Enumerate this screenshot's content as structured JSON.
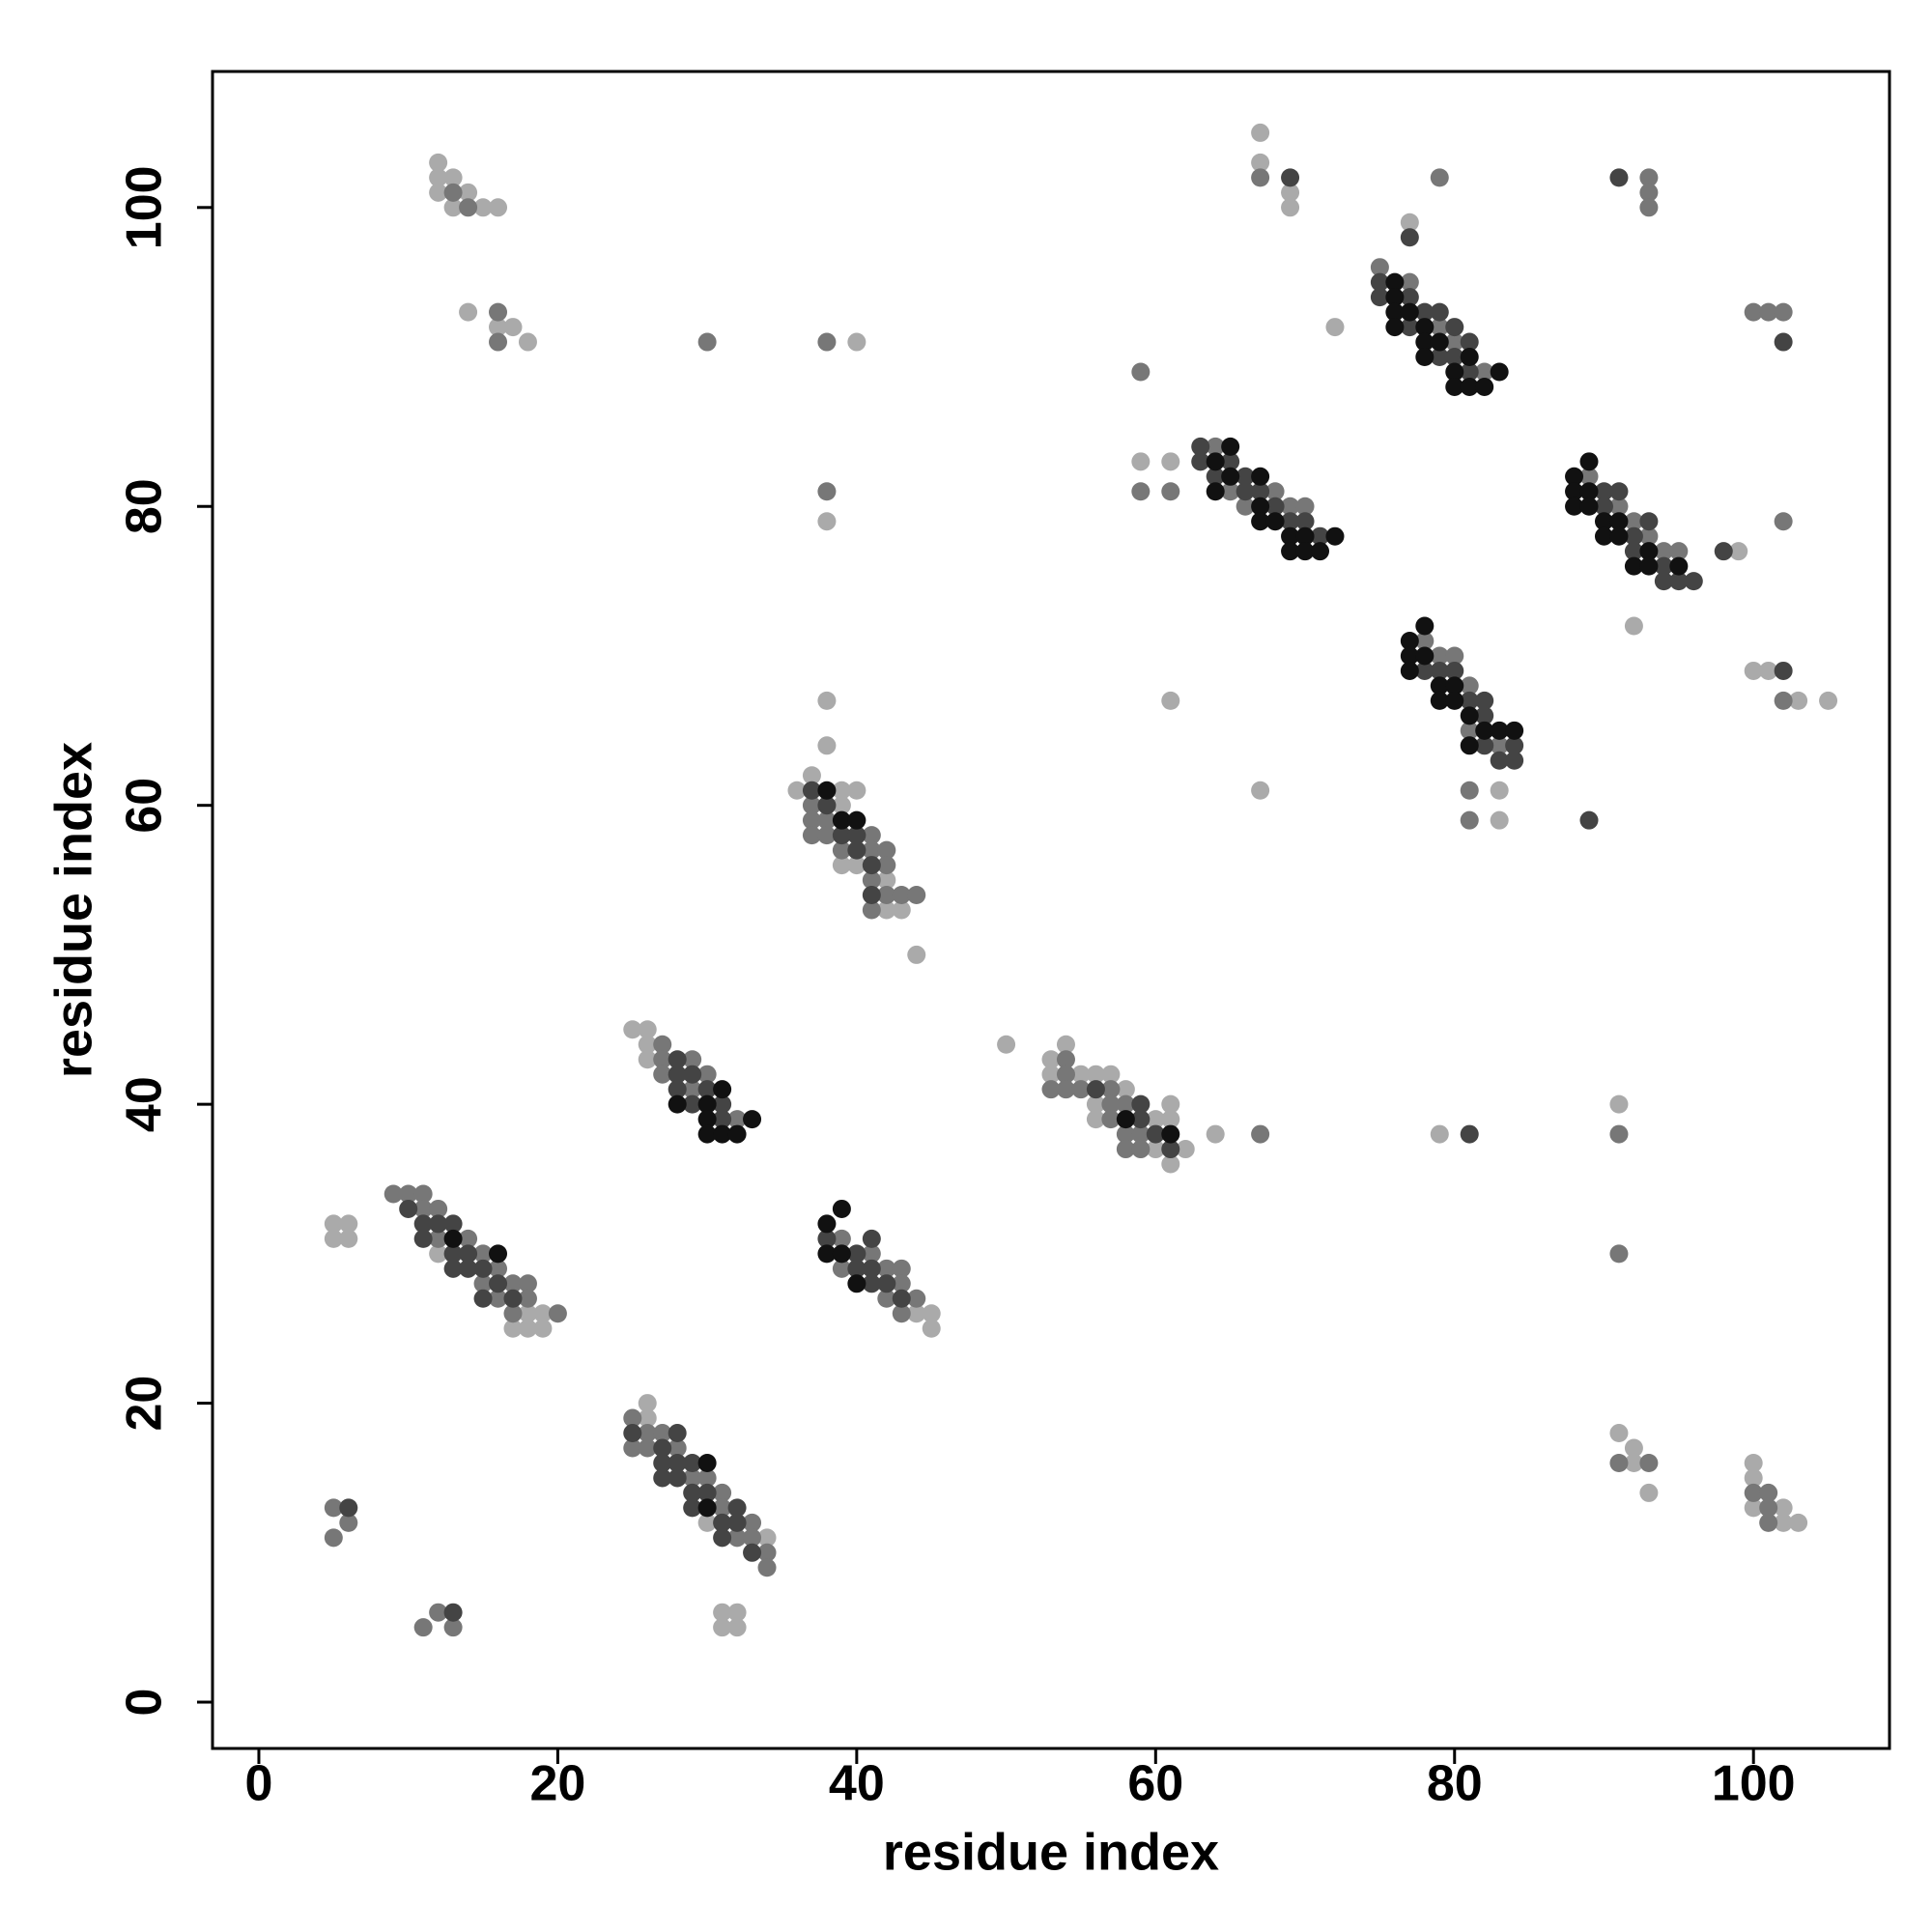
{
  "chart_data": {
    "type": "scatter",
    "xlabel": "residue index",
    "ylabel": "residue index",
    "xlim": [
      -3.1,
      109.1
    ],
    "ylim": [
      -3.1,
      109.1
    ],
    "xticks": [
      0,
      20,
      40,
      60,
      80,
      100
    ],
    "yticks": [
      0,
      20,
      40,
      60,
      80,
      100
    ],
    "series": [
      {
        "color": "#aaaaaa",
        "x": [
          12,
          12,
          12,
          13,
          13,
          14,
          15,
          16,
          14,
          16,
          17,
          18,
          40,
          38,
          38,
          38,
          36,
          37,
          39,
          40,
          39,
          39,
          40,
          42,
          42,
          43,
          44,
          59,
          61,
          77,
          72,
          83,
          83,
          67,
          61,
          99,
          92,
          100,
          101,
          103,
          105,
          67,
          67,
          69,
          69,
          25,
          26,
          26,
          26,
          50,
          54,
          53,
          53,
          55,
          56,
          57,
          58,
          56,
          61,
          56,
          60,
          61,
          60,
          62,
          61,
          64,
          79,
          91,
          44,
          45,
          45,
          12,
          18,
          19,
          17,
          18,
          19,
          5,
          6,
          5,
          6,
          26,
          26,
          30,
          34,
          31,
          32,
          31,
          32,
          91,
          92,
          92,
          93,
          100,
          100,
          100,
          102,
          102,
          103
        ],
        "values": [
          103,
          102,
          101,
          102,
          100,
          101,
          100,
          100,
          93,
          92,
          92,
          91,
          91,
          79,
          67,
          64,
          61,
          62,
          61,
          61,
          60,
          56,
          56,
          55,
          53,
          53,
          50,
          83,
          83,
          99,
          92,
          61,
          59,
          61,
          67,
          77,
          72,
          69,
          69,
          67,
          67,
          105,
          103,
          101,
          100,
          45,
          45,
          44,
          43,
          44,
          44,
          43,
          42,
          42,
          42,
          42,
          41,
          40,
          40,
          39,
          39,
          39,
          37,
          37,
          36,
          38,
          38,
          40,
          26,
          26,
          25,
          30,
          26,
          26,
          25,
          25,
          25,
          32,
          32,
          31,
          31,
          20,
          19,
          12,
          11,
          6,
          6,
          5,
          5,
          18,
          17,
          16,
          14,
          16,
          15,
          13,
          13,
          12,
          12
        ]
      },
      {
        "color": "#777777",
        "x": [
          13,
          14,
          16,
          16,
          30,
          38,
          38,
          37,
          37,
          38,
          37,
          38,
          41,
          39,
          41,
          42,
          42,
          41,
          42,
          43,
          44,
          41,
          59,
          61,
          59,
          64,
          65,
          68,
          66,
          69,
          70,
          75,
          77,
          79,
          80,
          82,
          79,
          78,
          79,
          80,
          81,
          81,
          83,
          81,
          81,
          89,
          91,
          92,
          93,
          94,
          95,
          102,
          102,
          100,
          101,
          102,
          93,
          93,
          93,
          67,
          27,
          27,
          29,
          27,
          30,
          29,
          32,
          54,
          54,
          53,
          54,
          55,
          57,
          57,
          58,
          57,
          58,
          59,
          58,
          59,
          67,
          91,
          91,
          39,
          41,
          39,
          42,
          43,
          43,
          42,
          44,
          43,
          9,
          10,
          11,
          11,
          12,
          12,
          14,
          15,
          16,
          15,
          17,
          18,
          16,
          18,
          17,
          20,
          25,
          26,
          27,
          25,
          26,
          28,
          29,
          30,
          31,
          31,
          33,
          32,
          33,
          34,
          34,
          5,
          6,
          5,
          11,
          12,
          13,
          91,
          93,
          100,
          101,
          101,
          101
        ],
        "values": [
          101,
          100,
          93,
          91,
          91,
          91,
          81,
          60,
          59,
          59,
          58,
          58,
          58,
          57,
          57,
          57,
          56,
          55,
          54,
          54,
          54,
          53,
          81,
          81,
          89,
          84,
          81,
          81,
          80,
          80,
          80,
          96,
          95,
          92,
          91,
          89,
          102,
          71,
          70,
          70,
          68,
          65,
          64,
          61,
          59,
          82,
          80,
          79,
          78,
          77,
          77,
          79,
          67,
          93,
          93,
          93,
          102,
          101,
          100,
          102,
          44,
          43,
          43,
          42,
          42,
          41,
          39,
          43,
          42,
          41,
          41,
          41,
          41,
          40,
          40,
          39,
          38,
          38,
          37,
          37,
          38,
          38,
          30,
          31,
          30,
          29,
          29,
          29,
          28,
          27,
          27,
          26,
          34,
          34,
          34,
          33,
          33,
          31,
          31,
          30,
          29,
          28,
          28,
          28,
          27,
          27,
          26,
          26,
          19,
          18,
          18,
          17,
          17,
          17,
          15,
          15,
          14,
          13,
          12,
          11,
          11,
          10,
          9,
          13,
          12,
          11,
          5,
          6,
          5,
          16,
          16,
          14,
          14,
          13,
          12
        ]
      },
      {
        "color": "#444444",
        "x": [
          37,
          38,
          39,
          40,
          40,
          41,
          41,
          63,
          63,
          65,
          64,
          66,
          66,
          67,
          68,
          69,
          70,
          71,
          75,
          75,
          77,
          78,
          79,
          77,
          80,
          81,
          79,
          80,
          81,
          77,
          69,
          91,
          78,
          79,
          80,
          81,
          82,
          82,
          82,
          84,
          83,
          84,
          89,
          90,
          91,
          90,
          93,
          92,
          92,
          94,
          94,
          95,
          96,
          98,
          102,
          102,
          28,
          28,
          29,
          28,
          30,
          29,
          31,
          31,
          56,
          59,
          59,
          60,
          61,
          81,
          38,
          41,
          40,
          40,
          41,
          41,
          42,
          43,
          10,
          11,
          12,
          13,
          11,
          13,
          14,
          13,
          14,
          15,
          16,
          15,
          17,
          25,
          28,
          27,
          27,
          28,
          29,
          27,
          28,
          29,
          30,
          29,
          32,
          31,
          32,
          31,
          33,
          6,
          13
        ],
        "values": [
          61,
          60,
          58,
          58,
          57,
          56,
          54,
          84,
          83,
          83,
          82,
          82,
          81,
          81,
          80,
          79,
          79,
          78,
          95,
          94,
          94,
          93,
          93,
          92,
          92,
          91,
          90,
          90,
          89,
          98,
          102,
          102,
          69,
          69,
          69,
          67,
          67,
          66,
          64,
          64,
          63,
          63,
          59,
          81,
          81,
          80,
          79,
          78,
          77,
          76,
          75,
          75,
          75,
          77,
          69,
          91,
          43,
          42,
          42,
          41,
          41,
          40,
          40,
          39,
          41,
          40,
          39,
          38,
          37,
          38,
          31,
          31,
          30,
          29,
          29,
          28,
          28,
          27,
          33,
          32,
          32,
          32,
          31,
          30,
          30,
          29,
          29,
          29,
          28,
          27,
          27,
          18,
          18,
          17,
          16,
          16,
          16,
          15,
          15,
          14,
          14,
          13,
          13,
          12,
          12,
          11,
          10,
          13,
          6
        ]
      },
      {
        "color": "#111111",
        "x": [
          38,
          39,
          40,
          65,
          64,
          65,
          67,
          64,
          67,
          67,
          68,
          69,
          70,
          72,
          69,
          70,
          71,
          76,
          76,
          76,
          77,
          76,
          78,
          78,
          79,
          78,
          81,
          80,
          83,
          80,
          81,
          82,
          78,
          77,
          77,
          78,
          77,
          79,
          80,
          79,
          80,
          81,
          82,
          83,
          84,
          81,
          89,
          88,
          88,
          89,
          88,
          89,
          90,
          91,
          90,
          91,
          93,
          92,
          93,
          95,
          31,
          28,
          30,
          30,
          33,
          30,
          31,
          32,
          58,
          61,
          38,
          39,
          38,
          39,
          40,
          13,
          16,
          30,
          30
        ],
        "values": [
          61,
          59,
          59,
          84,
          83,
          82,
          82,
          81,
          80,
          79,
          79,
          78,
          78,
          78,
          77,
          77,
          77,
          95,
          94,
          93,
          93,
          92,
          92,
          91,
          91,
          90,
          90,
          89,
          89,
          88,
          88,
          88,
          72,
          71,
          70,
          70,
          69,
          68,
          68,
          67,
          67,
          66,
          65,
          65,
          65,
          64,
          83,
          82,
          81,
          81,
          80,
          80,
          79,
          79,
          78,
          78,
          77,
          76,
          76,
          76,
          41,
          40,
          40,
          39,
          39,
          38,
          38,
          38,
          39,
          38,
          32,
          33,
          30,
          30,
          28,
          31,
          30,
          16,
          13
        ]
      }
    ]
  }
}
